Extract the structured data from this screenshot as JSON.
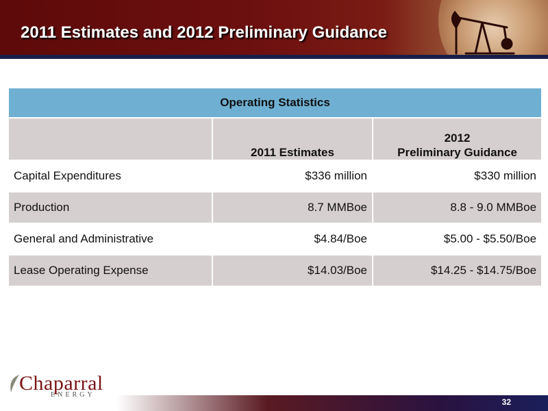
{
  "slide": {
    "title": "2011 Estimates and 2012 Preliminary Guidance",
    "page_number": "32"
  },
  "table": {
    "caption": "Operating Statistics",
    "column_headers": [
      "",
      "2011 Estimates",
      "2012",
      "Preliminary Guidance"
    ],
    "rows": [
      {
        "label": "Capital Expenditures",
        "estimate_2011": "$336 million",
        "guidance_2012": "$330 million"
      },
      {
        "label": "Production",
        "estimate_2011": "8.7 MMBoe",
        "guidance_2012": "8.8 - 9.0 MMBoe"
      },
      {
        "label": "General and Administrative",
        "estimate_2011": "$4.84/Boe",
        "guidance_2012": "$5.00 - $5.50/Boe"
      },
      {
        "label": "Lease Operating Expense",
        "estimate_2011": "$14.03/Boe",
        "guidance_2012": "$14.25 - $14.75/Boe"
      }
    ]
  },
  "logo": {
    "name": "Chaparral",
    "subtitle": "ENERGY"
  },
  "colors": {
    "header": "#6c0f0f",
    "table_caption": "#6fb0d2",
    "table_row_shade": "#d6cfcf",
    "logo": "#7a1414"
  },
  "icons": [
    "globe-icon",
    "pumpjack-icon",
    "leaf-icon"
  ]
}
